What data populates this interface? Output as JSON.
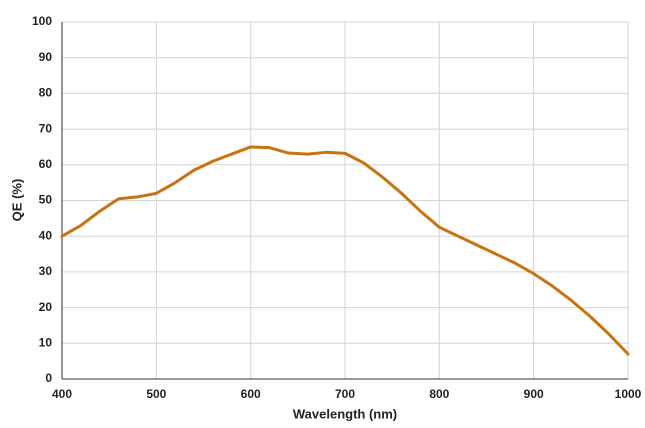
{
  "chart_data": {
    "type": "line",
    "x_label": "Wavelength (nm)",
    "y_label": "QE (%)",
    "x": [
      400,
      420,
      440,
      460,
      480,
      500,
      520,
      540,
      560,
      580,
      600,
      620,
      640,
      660,
      680,
      700,
      720,
      740,
      760,
      780,
      800,
      820,
      840,
      860,
      880,
      900,
      920,
      940,
      960,
      980,
      1000
    ],
    "values": [
      40,
      43,
      47,
      50.5,
      51,
      52,
      55,
      58.5,
      61,
      63,
      65,
      64.8,
      63.3,
      63,
      63.5,
      63.2,
      60.5,
      56.5,
      52,
      47,
      42.5,
      40,
      37.5,
      35,
      32.5,
      29.5,
      26,
      22,
      17.5,
      12.5,
      7
    ],
    "color": "#c8730f",
    "xlim": [
      400,
      1000
    ],
    "xticks": [
      400,
      500,
      600,
      700,
      800,
      900,
      1000
    ],
    "ylim": [
      0,
      100
    ],
    "yticks": [
      0,
      10,
      20,
      30,
      40,
      50,
      60,
      70,
      80,
      90,
      100
    ],
    "grid": true
  }
}
